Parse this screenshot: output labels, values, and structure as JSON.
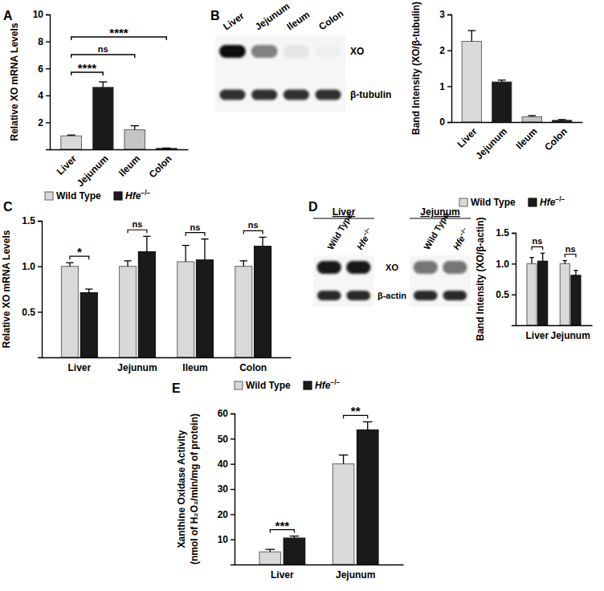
{
  "chart_data": [
    {
      "type": "bar",
      "panel": "A",
      "ylabel": "Relative XO mRNA Levels",
      "categories": [
        "Liver",
        "Jejunum",
        "Ileum",
        "Colon"
      ],
      "values": [
        1.0,
        4.6,
        1.45,
        0.08
      ],
      "errors": [
        0.06,
        0.4,
        0.3,
        0.02
      ],
      "colors": [
        "#d9d9d9",
        "#1a1a1a",
        "#c4c4c4",
        "#1a1a1a"
      ],
      "ylim": [
        0,
        10
      ],
      "yticks": [
        2,
        4,
        6,
        8,
        10
      ],
      "annotations": [
        {
          "from": "Liver",
          "to": "Jejunum",
          "text": "****"
        },
        {
          "from": "Liver",
          "to": "Ileum",
          "text": "ns"
        },
        {
          "from": "Liver",
          "to": "Colon",
          "text": "****"
        }
      ]
    },
    {
      "type": "blot",
      "panel": "B",
      "lanes": [
        "Liver",
        "Jejunum",
        "Ileum",
        "Colon"
      ],
      "rows": [
        "XO",
        "β-tubulin"
      ]
    },
    {
      "type": "bar",
      "ylabel": "Band Intensity (XO/β-tubulin)",
      "categories": [
        "Liver",
        "Jejunum",
        "Ileum",
        "Colon"
      ],
      "values": [
        2.25,
        1.12,
        0.15,
        0.05
      ],
      "errors": [
        0.3,
        0.05,
        0.03,
        0.02
      ],
      "colors": [
        "#d9d9d9",
        "#1a1a1a",
        "#c4c4c4",
        "#1a1a1a"
      ],
      "ylim": [
        0,
        3
      ],
      "yticks": [
        0,
        1,
        2,
        3
      ]
    },
    {
      "type": "grouped_bar",
      "panel": "C",
      "ylabel": "Relative XO mRNA Levels",
      "categories": [
        "Liver",
        "Jejunum",
        "Ileum",
        "Colon"
      ],
      "series": [
        {
          "name": "Wild Type",
          "color": "#d9d9d9",
          "values": [
            1.0,
            1.0,
            1.05,
            1.0
          ],
          "errors": [
            0.04,
            0.06,
            0.18,
            0.06
          ]
        },
        {
          "name": "Hfe−/−",
          "color": "#1a1a1a",
          "values": [
            0.71,
            1.16,
            1.07,
            1.22
          ],
          "errors": [
            0.04,
            0.17,
            0.23,
            0.1
          ]
        }
      ],
      "ylim": [
        0,
        1.5
      ],
      "yticks": [
        {
          "value": 0.5,
          "label": "0.5"
        },
        {
          "value": 1,
          "label": "1.0"
        },
        {
          "value": 1.5,
          "label": "1.5"
        }
      ],
      "legend": "top-left",
      "annotations": [
        {
          "category": "Liver",
          "text": "*"
        },
        {
          "category": "Jejunum",
          "text": "ns"
        },
        {
          "category": "Ileum",
          "text": "ns"
        },
        {
          "category": "Colon",
          "text": "ns"
        }
      ]
    },
    {
      "type": "blot",
      "panel": "D",
      "groups": [
        {
          "title": "Liver",
          "lanes": [
            "Wild Type",
            "Hfe−/−"
          ]
        },
        {
          "title": "Jejunum",
          "lanes": [
            "Wild Type",
            "Hfe−/−"
          ]
        }
      ],
      "rows": [
        "XO",
        "β-actin"
      ]
    },
    {
      "type": "grouped_bar",
      "ylabel": "Band Intensity (XO/β-actin)",
      "categories": [
        "Liver",
        "Jejunum"
      ],
      "series": [
        {
          "name": "Wild Type",
          "color": "#d9d9d9",
          "values": [
            1.0,
            1.0
          ],
          "errors": [
            0.1,
            0.05
          ]
        },
        {
          "name": "Hfe−/−",
          "color": "#1a1a1a",
          "values": [
            1.04,
            0.81
          ],
          "errors": [
            0.13,
            0.08
          ]
        }
      ],
      "ylim": [
        0,
        1.5
      ],
      "yticks": [
        {
          "value": 0.5,
          "label": "0.5"
        },
        {
          "value": 1,
          "label": "1.0"
        },
        {
          "value": 1.5,
          "label": "1.5"
        }
      ],
      "legend": "top-left",
      "annotations": [
        {
          "category": "Liver",
          "text": "ns"
        },
        {
          "category": "Jejunum",
          "text": "ns"
        }
      ]
    },
    {
      "type": "grouped_bar",
      "panel": "E",
      "ylabel": [
        "Xanthine Oxidase Activity",
        "(nmol of H₂O₂/min/mg of protein)"
      ],
      "categories": [
        "Liver",
        "Jejunum"
      ],
      "series": [
        {
          "name": "Wild Type",
          "color": "#d9d9d9",
          "values": [
            5.0,
            40.0
          ],
          "errors": [
            1.0,
            3.5
          ]
        },
        {
          "name": "Hfe−/−",
          "color": "#1a1a1a",
          "values": [
            10.5,
            53.5
          ],
          "errors": [
            0.8,
            3.2
          ]
        }
      ],
      "ylim": [
        0,
        60
      ],
      "yticks": [
        10,
        20,
        30,
        40,
        50,
        60
      ],
      "legend": "top-left",
      "annotations": [
        {
          "category": "Liver",
          "text": "***"
        },
        {
          "category": "Jejunum",
          "text": "**"
        }
      ]
    }
  ]
}
